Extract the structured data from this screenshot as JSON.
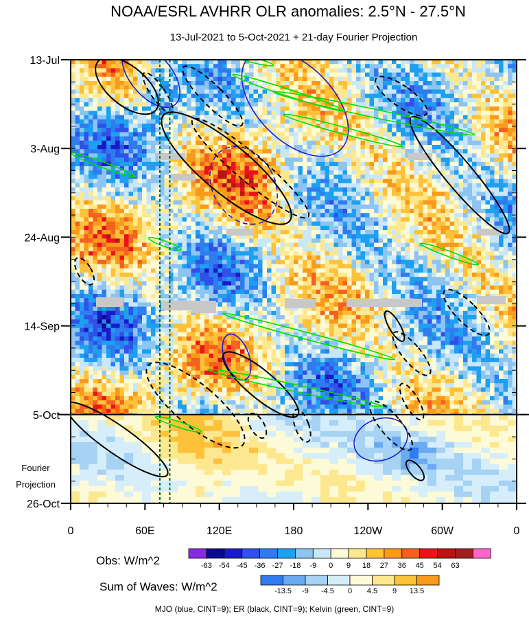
{
  "chart_data": {
    "type": "heatmap",
    "title": "NOAA/ESRL AVHRR OLR anomalies: 2.5°N - 27.5°N",
    "subtitle": "13-Jul-2021 to 5-Oct-2021 + 21-day Fourier Projection",
    "x_ticks": [
      "0",
      "60E",
      "120E",
      "180",
      "120W",
      "60W",
      "0"
    ],
    "x_tick_lons": [
      0,
      60,
      120,
      180,
      240,
      300,
      360
    ],
    "y_ticks": [
      "13-Jul",
      "3-Aug",
      "24-Aug",
      "14-Sep",
      "5-Oct",
      "26-Oct"
    ],
    "y_tick_days": [
      0,
      21,
      42,
      63,
      84,
      105
    ],
    "projection_start_day": 84,
    "projection_label": [
      "Fourier",
      "Projection"
    ],
    "obs_legend": {
      "title": "Obs: W/m^2",
      "levels": [
        "-63",
        "-54",
        "-45",
        "-36",
        "-27",
        "-18",
        "-9",
        "0",
        "9",
        "18",
        "27",
        "36",
        "45",
        "54",
        "63"
      ],
      "colors": [
        "#8a2be2",
        "#0a0a8f",
        "#1a1ac8",
        "#3050e8",
        "#2f7cf0",
        "#1ea0f0",
        "#8ec4f2",
        "#c8e8fa",
        "#fdfad8",
        "#fde890",
        "#fdc23a",
        "#f99a1c",
        "#f5611f",
        "#e8141a",
        "#b81414",
        "#a02020",
        "#ff66cc"
      ]
    },
    "waves_legend": {
      "title": "Sum of Waves: W/m^2",
      "levels": [
        "-13.5",
        "-9",
        "-4.5",
        "0",
        "4.5",
        "9",
        "13.5"
      ],
      "colors": [
        "#2f7cf0",
        "#6aaaf2",
        "#a6d2f4",
        "#d6eefa",
        "#fdfad8",
        "#fde890",
        "#fdc23a",
        "#f99a1c"
      ]
    },
    "caption": "MJO (blue, CINT=9); ER (black, CINT=9); Kelvin (green, CINT=9)",
    "hatched_gap_color": "#c8c8c8",
    "mjo_color": "#1c1cd0",
    "er_color": "#000000",
    "kelvin_color": "#00e000",
    "vertical_lines_lon": [
      72,
      80
    ]
  }
}
